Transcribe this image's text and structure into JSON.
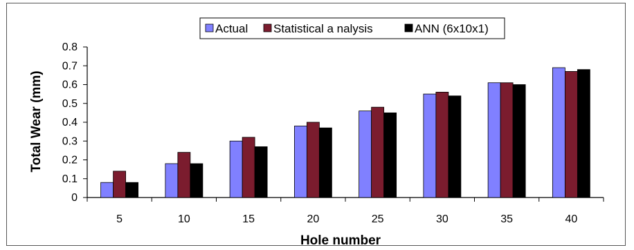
{
  "chart_data": {
    "type": "bar",
    "title": "",
    "xlabel": "Hole number",
    "ylabel": "Total Wear (mm)",
    "categories": [
      "5",
      "10",
      "15",
      "20",
      "25",
      "30",
      "35",
      "40"
    ],
    "ylim": [
      0,
      0.8
    ],
    "yticks": [
      "0",
      "0.1",
      "0.2",
      "0.3",
      "0.4",
      "0.5",
      "0.6",
      "0.7",
      "0.8"
    ],
    "grid": false,
    "legend_position": "top-center",
    "series": [
      {
        "name": "Actual",
        "color": "#8080ff",
        "values": [
          0.08,
          0.18,
          0.3,
          0.38,
          0.46,
          0.55,
          0.61,
          0.69
        ]
      },
      {
        "name": "Statistical a nalysis",
        "color": "#7b1c2e",
        "values": [
          0.14,
          0.24,
          0.32,
          0.4,
          0.48,
          0.56,
          0.61,
          0.67
        ]
      },
      {
        "name": "ANN (6x10x1)",
        "color": "#000000",
        "values": [
          0.08,
          0.18,
          0.27,
          0.37,
          0.45,
          0.54,
          0.6,
          0.68
        ]
      }
    ]
  }
}
